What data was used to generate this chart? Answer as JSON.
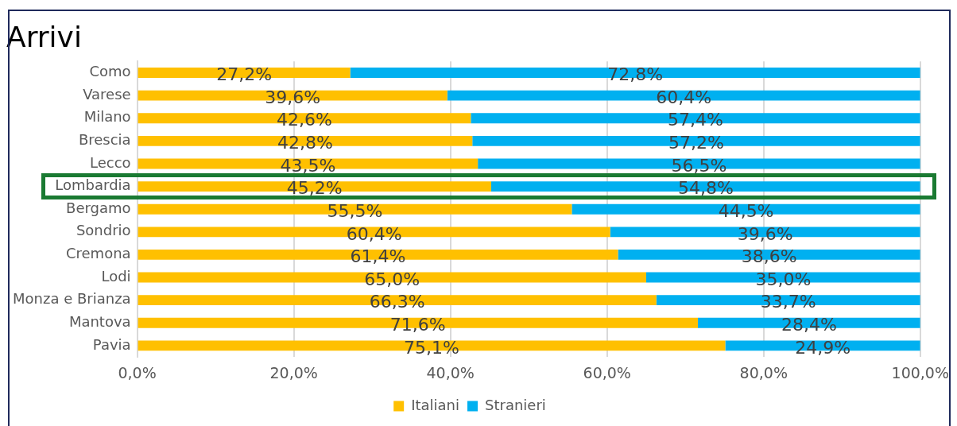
{
  "chart_data": {
    "type": "bar",
    "title": "Arrivi",
    "orientation": "horizontal",
    "stacked": true,
    "categories": [
      "Como",
      "Varese",
      "Milano",
      "Brescia",
      "Lecco",
      "Lombardia",
      "Bergamo",
      "Sondrio",
      "Cremona",
      "Lodi",
      "Monza e Brianza",
      "Mantova",
      "Pavia"
    ],
    "series": [
      {
        "name": "Italiani",
        "color": "#ffc000",
        "values": [
          27.2,
          39.6,
          42.6,
          42.8,
          43.5,
          45.2,
          55.5,
          60.4,
          61.4,
          65.0,
          66.3,
          71.6,
          75.1
        ],
        "value_labels": [
          "27,2%",
          "39,6%",
          "42,6%",
          "42,8%",
          "43,5%",
          "45,2%",
          "55,5%",
          "60,4%",
          "61,4%",
          "65,0%",
          "66,3%",
          "71,6%",
          "75,1%"
        ]
      },
      {
        "name": "Stranieri",
        "color": "#00b0f0",
        "values": [
          72.8,
          60.4,
          57.4,
          57.2,
          56.5,
          54.8,
          44.5,
          39.6,
          38.6,
          35.0,
          33.7,
          28.4,
          24.9
        ],
        "value_labels": [
          "72,8%",
          "60,4%",
          "57,4%",
          "57,2%",
          "56,5%",
          "54,8%",
          "44,5%",
          "39,6%",
          "38,6%",
          "35,0%",
          "33,7%",
          "28,4%",
          "24,9%"
        ]
      }
    ],
    "xlim": [
      0,
      100
    ],
    "xticks": [
      {
        "value": 0,
        "label": "0,0%"
      },
      {
        "value": 20,
        "label": "20,0%"
      },
      {
        "value": 40,
        "label": "40,0%"
      },
      {
        "value": 60,
        "label": "60,0%"
      },
      {
        "value": 80,
        "label": "80,0%"
      },
      {
        "value": 100,
        "label": "100,0%"
      }
    ],
    "grid": "x",
    "legend": "bottom"
  }
}
